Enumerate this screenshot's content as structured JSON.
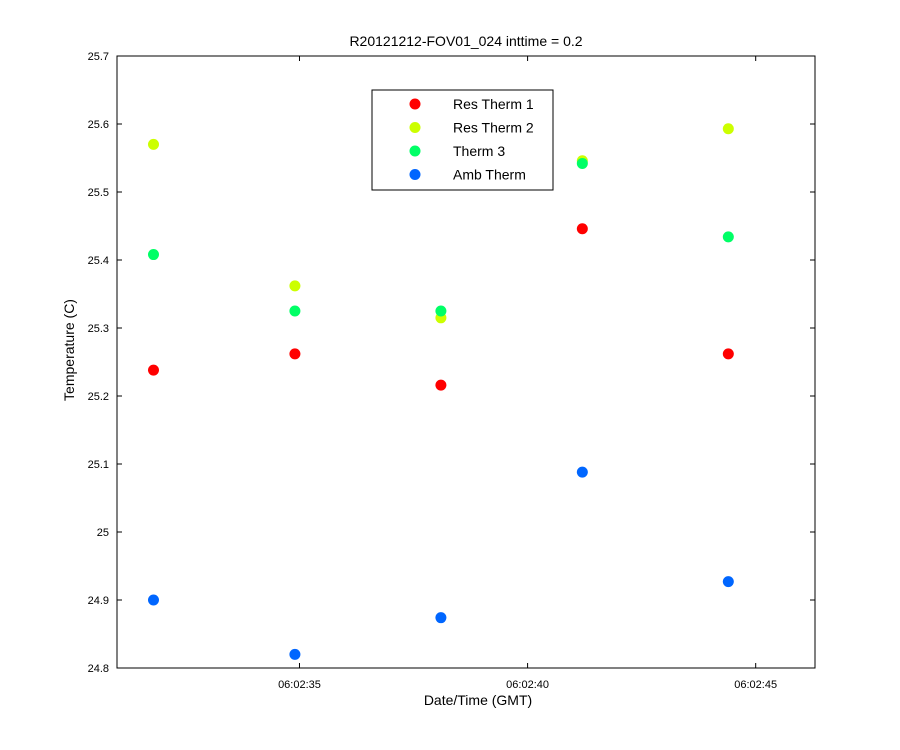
{
  "chart_data": {
    "type": "scatter",
    "title": "R20121212-FOV01_024 inttime = 0.2",
    "xlabel": "Date/Time (GMT)",
    "ylabel": "Temperature (C)",
    "x_axis_type": "time",
    "xlim": [
      "06:02:31.0",
      "06:02:46.3"
    ],
    "xticks": [
      "06:02:35",
      "06:02:40",
      "06:02:45"
    ],
    "ylim": [
      24.8,
      25.7
    ],
    "yticks": [
      "24.8",
      "24.9",
      "25",
      "25.1",
      "25.2",
      "25.3",
      "25.4",
      "25.5",
      "25.6",
      "25.7"
    ],
    "grid": false,
    "legend_position": "top-center",
    "x": [
      "06:02:31.8",
      "06:02:34.9",
      "06:02:38.1",
      "06:02:41.2",
      "06:02:44.4"
    ],
    "series": [
      {
        "name": "Res Therm 1",
        "color": "#ff0000",
        "values": [
          25.238,
          25.262,
          25.216,
          25.446,
          25.262
        ]
      },
      {
        "name": "Res Therm 2",
        "color": "#ccff00",
        "values": [
          25.57,
          25.362,
          25.315,
          25.546,
          25.593
        ]
      },
      {
        "name": "Therm 3",
        "color": "#00ff66",
        "values": [
          25.408,
          25.325,
          25.325,
          25.542,
          25.434
        ]
      },
      {
        "name": "Amb Therm",
        "color": "#0066ff",
        "values": [
          24.9,
          24.82,
          24.874,
          25.088,
          24.927
        ]
      }
    ]
  }
}
